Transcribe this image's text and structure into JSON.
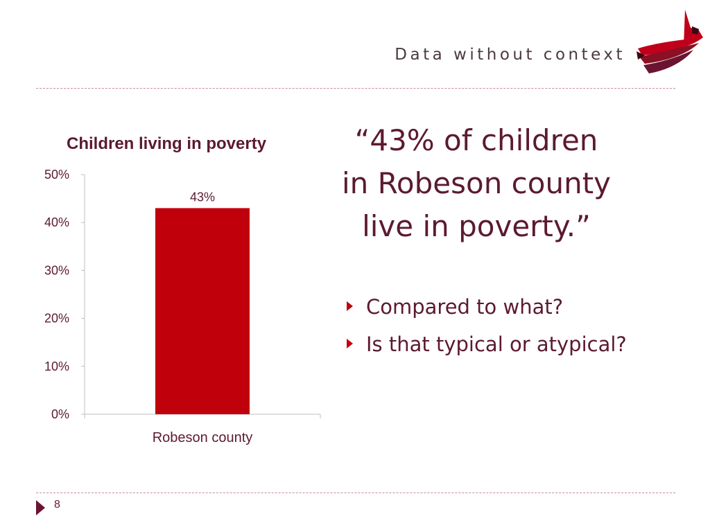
{
  "slide": {
    "header_title": "Data without context",
    "quote": "“43% of children in Robeson county live in poverty.”",
    "bullets": [
      "Compared to what?",
      "Is that typical or atypical?"
    ],
    "page_number": "8",
    "accent_color": "#c0000a",
    "text_color": "#5c1a2e"
  },
  "chart_data": {
    "type": "bar",
    "title": "Children living in poverty",
    "categories": [
      "Robeson county"
    ],
    "values": [
      43
    ],
    "data_labels": [
      "43%"
    ],
    "ylim": [
      0,
      50
    ],
    "yticks": [
      0,
      10,
      20,
      30,
      40,
      50
    ],
    "ytick_labels": [
      "0%",
      "10%",
      "20%",
      "30%",
      "40%",
      "50%"
    ],
    "xlabel": "",
    "ylabel": "",
    "grid": false,
    "legend": "none",
    "bar_color": "#c0000a"
  }
}
